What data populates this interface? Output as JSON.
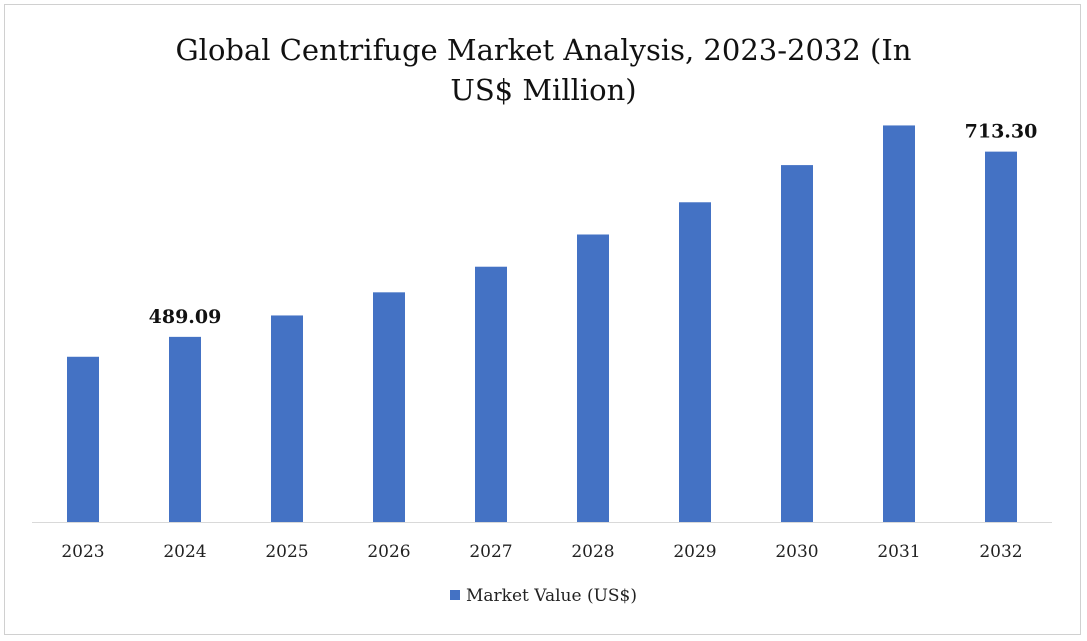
{
  "chart_data": {
    "type": "bar",
    "title_lines": [
      "Global Centrifuge Market Analysis, 2023-2032 (In",
      "US$ Million)"
    ],
    "categories": [
      "2023",
      "2024",
      "2025",
      "2026",
      "2027",
      "2028",
      "2029",
      "2030",
      "2031",
      "2032"
    ],
    "series": [
      {
        "name": "Market Value (US$)",
        "values": [
          465.0,
          489.09,
          515.0,
          543.0,
          574.0,
          613.0,
          652.0,
          697.0,
          745.0,
          713.3
        ],
        "data_labels": {
          "1": "489.09",
          "9": "713.30"
        }
      }
    ],
    "ylim": [
      265,
      800
    ],
    "legend_position": "bottom",
    "grid": false,
    "colors": {
      "bar": "#4472c4"
    }
  }
}
